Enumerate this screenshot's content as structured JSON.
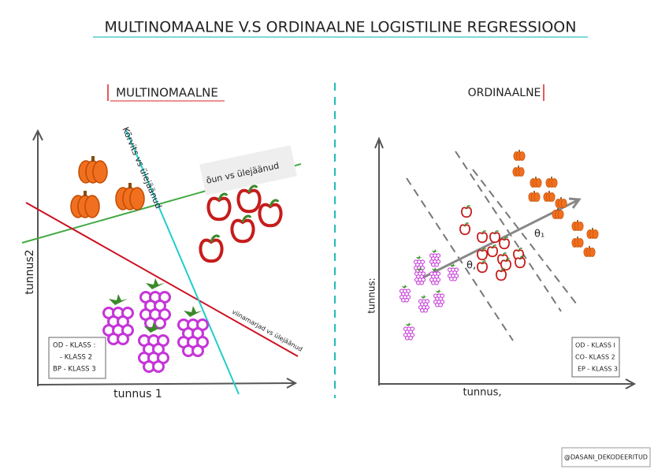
{
  "header": {
    "title": "MULTINOMAALNE V.S ORDINAALNE LOGISTILINE REGRESSIOON"
  },
  "left_panel": {
    "heading": "MULTINOMAALNE",
    "y_axis_label": "tunnus2",
    "x_axis_label": "tunnus 1",
    "line_labels": [
      "Kõrvits vs ülejäänud",
      "õun vs ülejäänud",
      "viinamarjad vs ülejäänud"
    ],
    "legend": [
      "OD - KLASS :",
      "- KLASS 2",
      "BP - KLASS 3"
    ]
  },
  "right_panel": {
    "heading": "ORDINAALNE",
    "y_axis_label": "tunnus:",
    "x_axis_label": "tunnus,",
    "theta_labels": [
      "θ₁",
      "θ,"
    ],
    "legend": [
      "OD - KLASS I",
      "CO- KLASS 2",
      "EP - KLASS 3"
    ]
  },
  "footer": {
    "credit": "@DASANI_DEKODEERITUD"
  }
}
